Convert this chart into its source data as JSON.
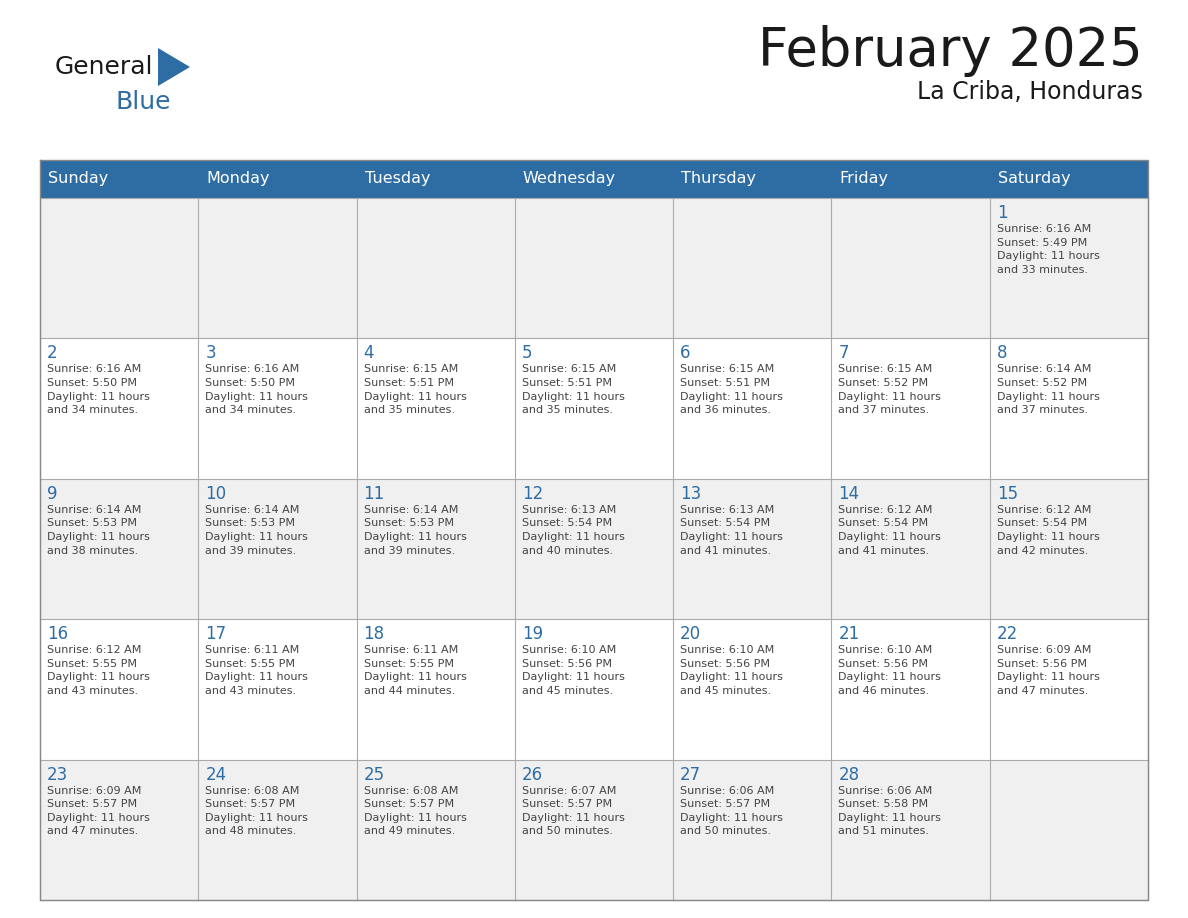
{
  "title": "February 2025",
  "subtitle": "La Criba, Honduras",
  "days_of_week": [
    "Sunday",
    "Monday",
    "Tuesday",
    "Wednesday",
    "Thursday",
    "Friday",
    "Saturday"
  ],
  "header_bg": "#2E6DA4",
  "header_text": "#FFFFFF",
  "cell_bg_odd": "#F0F0F0",
  "cell_bg_even": "#FFFFFF",
  "cell_border": "#AAAAAA",
  "day_num_color": "#2E6DA4",
  "info_color": "#444444",
  "title_color": "#1a1a1a",
  "calendar": [
    [
      null,
      null,
      null,
      null,
      null,
      null,
      {
        "day": "1",
        "sunrise": "6:16 AM",
        "sunset": "5:49 PM",
        "daylight": "11 hours\nand 33 minutes."
      }
    ],
    [
      {
        "day": "2",
        "sunrise": "6:16 AM",
        "sunset": "5:50 PM",
        "daylight": "11 hours\nand 34 minutes."
      },
      {
        "day": "3",
        "sunrise": "6:16 AM",
        "sunset": "5:50 PM",
        "daylight": "11 hours\nand 34 minutes."
      },
      {
        "day": "4",
        "sunrise": "6:15 AM",
        "sunset": "5:51 PM",
        "daylight": "11 hours\nand 35 minutes."
      },
      {
        "day": "5",
        "sunrise": "6:15 AM",
        "sunset": "5:51 PM",
        "daylight": "11 hours\nand 35 minutes."
      },
      {
        "day": "6",
        "sunrise": "6:15 AM",
        "sunset": "5:51 PM",
        "daylight": "11 hours\nand 36 minutes."
      },
      {
        "day": "7",
        "sunrise": "6:15 AM",
        "sunset": "5:52 PM",
        "daylight": "11 hours\nand 37 minutes."
      },
      {
        "day": "8",
        "sunrise": "6:14 AM",
        "sunset": "5:52 PM",
        "daylight": "11 hours\nand 37 minutes."
      }
    ],
    [
      {
        "day": "9",
        "sunrise": "6:14 AM",
        "sunset": "5:53 PM",
        "daylight": "11 hours\nand 38 minutes."
      },
      {
        "day": "10",
        "sunrise": "6:14 AM",
        "sunset": "5:53 PM",
        "daylight": "11 hours\nand 39 minutes."
      },
      {
        "day": "11",
        "sunrise": "6:14 AM",
        "sunset": "5:53 PM",
        "daylight": "11 hours\nand 39 minutes."
      },
      {
        "day": "12",
        "sunrise": "6:13 AM",
        "sunset": "5:54 PM",
        "daylight": "11 hours\nand 40 minutes."
      },
      {
        "day": "13",
        "sunrise": "6:13 AM",
        "sunset": "5:54 PM",
        "daylight": "11 hours\nand 41 minutes."
      },
      {
        "day": "14",
        "sunrise": "6:12 AM",
        "sunset": "5:54 PM",
        "daylight": "11 hours\nand 41 minutes."
      },
      {
        "day": "15",
        "sunrise": "6:12 AM",
        "sunset": "5:54 PM",
        "daylight": "11 hours\nand 42 minutes."
      }
    ],
    [
      {
        "day": "16",
        "sunrise": "6:12 AM",
        "sunset": "5:55 PM",
        "daylight": "11 hours\nand 43 minutes."
      },
      {
        "day": "17",
        "sunrise": "6:11 AM",
        "sunset": "5:55 PM",
        "daylight": "11 hours\nand 43 minutes."
      },
      {
        "day": "18",
        "sunrise": "6:11 AM",
        "sunset": "5:55 PM",
        "daylight": "11 hours\nand 44 minutes."
      },
      {
        "day": "19",
        "sunrise": "6:10 AM",
        "sunset": "5:56 PM",
        "daylight": "11 hours\nand 45 minutes."
      },
      {
        "day": "20",
        "sunrise": "6:10 AM",
        "sunset": "5:56 PM",
        "daylight": "11 hours\nand 45 minutes."
      },
      {
        "day": "21",
        "sunrise": "6:10 AM",
        "sunset": "5:56 PM",
        "daylight": "11 hours\nand 46 minutes."
      },
      {
        "day": "22",
        "sunrise": "6:09 AM",
        "sunset": "5:56 PM",
        "daylight": "11 hours\nand 47 minutes."
      }
    ],
    [
      {
        "day": "23",
        "sunrise": "6:09 AM",
        "sunset": "5:57 PM",
        "daylight": "11 hours\nand 47 minutes."
      },
      {
        "day": "24",
        "sunrise": "6:08 AM",
        "sunset": "5:57 PM",
        "daylight": "11 hours\nand 48 minutes."
      },
      {
        "day": "25",
        "sunrise": "6:08 AM",
        "sunset": "5:57 PM",
        "daylight": "11 hours\nand 49 minutes."
      },
      {
        "day": "26",
        "sunrise": "6:07 AM",
        "sunset": "5:57 PM",
        "daylight": "11 hours\nand 50 minutes."
      },
      {
        "day": "27",
        "sunrise": "6:06 AM",
        "sunset": "5:57 PM",
        "daylight": "11 hours\nand 50 minutes."
      },
      {
        "day": "28",
        "sunrise": "6:06 AM",
        "sunset": "5:58 PM",
        "daylight": "11 hours\nand 51 minutes."
      },
      null
    ]
  ],
  "figsize": [
    11.88,
    9.18
  ],
  "dpi": 100
}
